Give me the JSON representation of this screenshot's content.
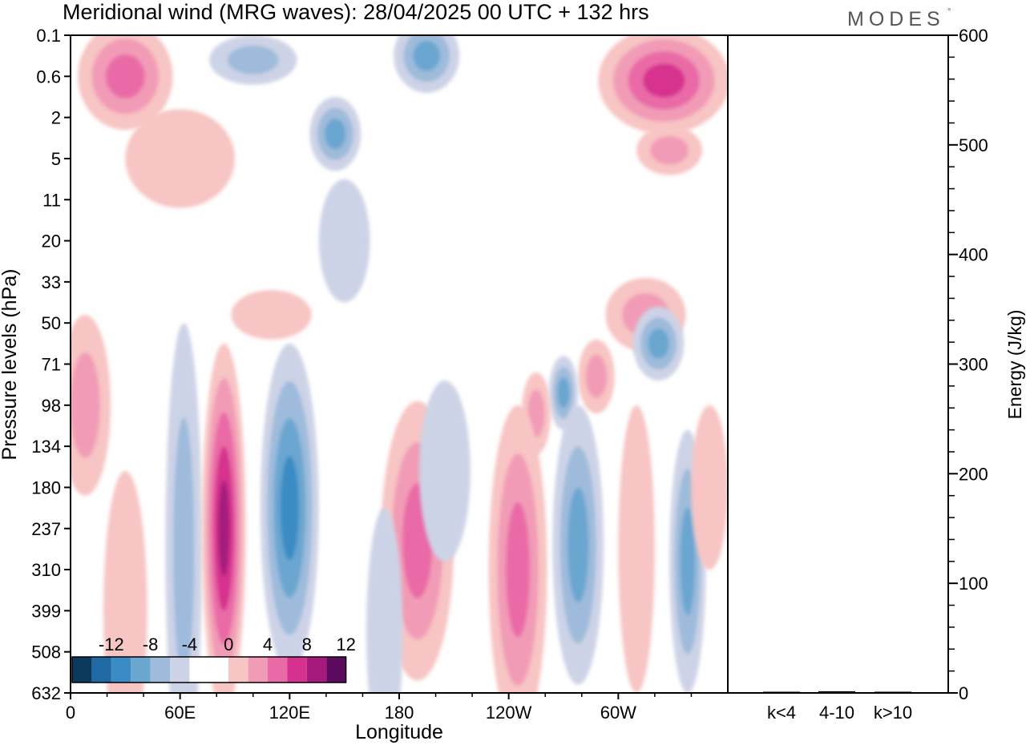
{
  "figure": {
    "title": "Meridional wind (MRG waves):  28/04/2025  00 UTC  + 132 hrs",
    "logo": "MODES",
    "logo_mark": "°"
  },
  "colors": {
    "neg": [
      "#0b3a5c",
      "#1f6aa5",
      "#3a8cc4",
      "#6aa6d0",
      "#9ebbdb",
      "#cdd3e6"
    ],
    "pos": [
      "#f7c5c3",
      "#f29bb6",
      "#e96aa6",
      "#d6318e",
      "#a51a7c",
      "#5c0a5e"
    ],
    "zero": "#ffffff"
  },
  "chart_data": [
    {
      "type": "heatmap",
      "variable": "Meridional wind (MRG waves)",
      "xlabel": "Longitude",
      "ylabel": "Pressure levels (hPa)",
      "x_ticks": [
        "0",
        "60E",
        "120E",
        "180",
        "120W",
        "60W"
      ],
      "x_tick_degrees": [
        0,
        60,
        120,
        180,
        240,
        300
      ],
      "xlim": [
        0,
        360
      ],
      "y_ticks": [
        "0.1",
        "0.6",
        "2",
        "5",
        "11",
        "20",
        "33",
        "50",
        "71",
        "98",
        "134",
        "180",
        "237",
        "310",
        "399",
        "508",
        "632"
      ],
      "y_scale": "pressure levels, equally spaced, top = 0.1",
      "colorbar_labels": [
        "-12",
        "-8",
        "-4",
        "0",
        "4",
        "8",
        "12"
      ],
      "contour_levels": [
        -14,
        -12,
        -10,
        -8,
        -6,
        -4,
        -2,
        2,
        4,
        6,
        8,
        10,
        12,
        14
      ],
      "colorbar_placement": "bottom-left",
      "grid": false,
      "features": [
        {
          "sign": "pos",
          "level": 2,
          "lon": 30,
          "lev": 1.0,
          "wlon": 26,
          "wlev": 1.3
        },
        {
          "sign": "pos",
          "level": 0,
          "lon": 60,
          "lev": 3.0,
          "wlon": 30,
          "wlev": 1.2
        },
        {
          "sign": "neg",
          "level": 1,
          "lon": 100,
          "lev": 0.6,
          "wlon": 24,
          "wlev": 0.6
        },
        {
          "sign": "neg",
          "level": 2,
          "lon": 195,
          "lev": 0.5,
          "wlon": 18,
          "wlev": 0.9
        },
        {
          "sign": "neg",
          "level": 2,
          "lon": 145,
          "lev": 2.4,
          "wlon": 14,
          "wlev": 0.9
        },
        {
          "sign": "neg",
          "level": 0,
          "lon": 150,
          "lev": 5.0,
          "wlon": 14,
          "wlev": 1.5
        },
        {
          "sign": "pos",
          "level": 3,
          "lon": 325,
          "lev": 1.1,
          "wlon": 36,
          "wlev": 1.3
        },
        {
          "sign": "pos",
          "level": 1,
          "lon": 328,
          "lev": 2.8,
          "wlon": 18,
          "wlev": 0.6
        },
        {
          "sign": "pos",
          "level": 0,
          "lon": 110,
          "lev": 6.8,
          "wlon": 22,
          "wlev": 0.6
        },
        {
          "sign": "pos",
          "level": 1,
          "lon": 315,
          "lev": 6.8,
          "wlon": 22,
          "wlev": 0.9
        },
        {
          "sign": "neg",
          "level": 2,
          "lon": 322,
          "lev": 7.5,
          "wlon": 14,
          "wlev": 0.9
        },
        {
          "sign": "pos",
          "level": 1,
          "lon": 288,
          "lev": 8.3,
          "wlon": 10,
          "wlev": 0.9
        },
        {
          "sign": "neg",
          "level": 2,
          "lon": 270,
          "lev": 8.7,
          "wlon": 8,
          "wlev": 0.9
        },
        {
          "sign": "pos",
          "level": 1,
          "lon": 255,
          "lev": 9.2,
          "wlon": 8,
          "wlev": 1.0
        },
        {
          "sign": "pos",
          "level": 1,
          "lon": 8,
          "lev": 9.0,
          "wlon": 14,
          "wlev": 2.2
        },
        {
          "sign": "neg",
          "level": 1,
          "lon": 62,
          "lev": 12.5,
          "wlon": 10,
          "wlev": 5.5
        },
        {
          "sign": "pos",
          "level": 4,
          "lon": 84,
          "lev": 12.0,
          "wlon": 12,
          "wlev": 4.5
        },
        {
          "sign": "neg",
          "level": 3,
          "lon": 120,
          "lev": 11.5,
          "wlon": 16,
          "wlev": 4.0
        },
        {
          "sign": "pos",
          "level": 2,
          "lon": 190,
          "lev": 12.3,
          "wlon": 20,
          "wlev": 3.4
        },
        {
          "sign": "neg",
          "level": 0,
          "lon": 205,
          "lev": 10.6,
          "wlon": 14,
          "wlev": 2.2
        },
        {
          "sign": "pos",
          "level": 2,
          "lon": 245,
          "lev": 13.0,
          "wlon": 16,
          "wlev": 4.0
        },
        {
          "sign": "neg",
          "level": 2,
          "lon": 278,
          "lev": 12.4,
          "wlon": 14,
          "wlev": 3.4
        },
        {
          "sign": "pos",
          "level": 0,
          "lon": 310,
          "lev": 12.5,
          "wlon": 10,
          "wlev": 3.5
        },
        {
          "sign": "neg",
          "level": 2,
          "lon": 338,
          "lev": 12.8,
          "wlon": 10,
          "wlev": 3.2
        },
        {
          "sign": "pos",
          "level": 0,
          "lon": 350,
          "lev": 11.0,
          "wlon": 10,
          "wlev": 2.0
        },
        {
          "sign": "neg",
          "level": 0,
          "lon": 172,
          "lev": 14.5,
          "wlon": 10,
          "wlev": 3.0
        },
        {
          "sign": "pos",
          "level": 0,
          "lon": 30,
          "lev": 14.0,
          "wlon": 12,
          "wlev": 3.4
        }
      ]
    },
    {
      "type": "bar",
      "ylabel": "Energy (J/kg)",
      "ylim": [
        0,
        600
      ],
      "y_ticks": [
        "0",
        "100",
        "200",
        "300",
        "400",
        "500",
        "600"
      ],
      "categories": [
        "k<4",
        "4-10",
        "k>10"
      ],
      "values": [
        0.5,
        1.5,
        0.3
      ]
    }
  ]
}
